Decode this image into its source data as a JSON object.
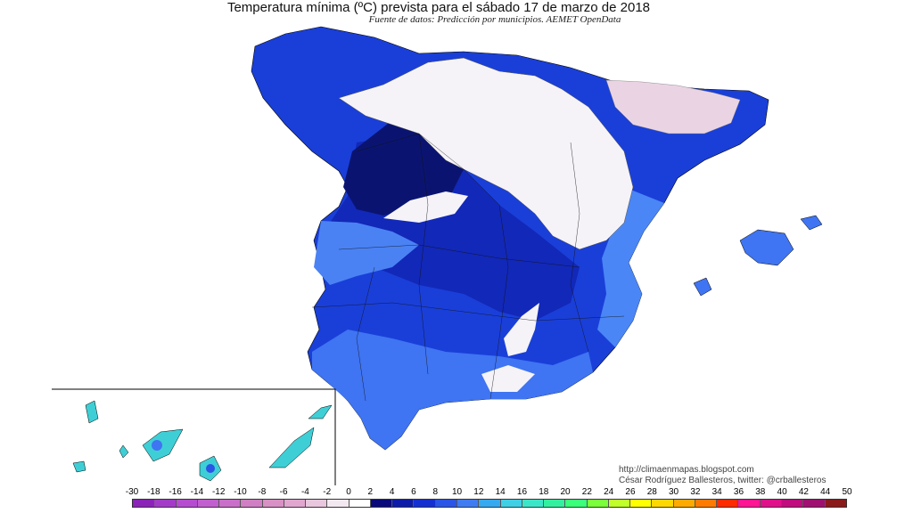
{
  "header": {
    "title": "Temperatura mínima (ºC) prevista para el sábado 17 de marzo de 2018",
    "source": "Fuente de datos: Predicción por municipios. AEMET OpenData"
  },
  "credits": {
    "url": "http://climaenmapas.blogspot.com",
    "author": "César Rodríguez Ballesteros, twitter: @crballesteros"
  },
  "legend": {
    "labels": [
      "-30",
      "-18",
      "-16",
      "-14",
      "-12",
      "-10",
      "-8",
      "-6",
      "-4",
      "-2",
      "0",
      "2",
      "4",
      "6",
      "8",
      "10",
      "12",
      "14",
      "16",
      "18",
      "20",
      "22",
      "24",
      "26",
      "28",
      "30",
      "32",
      "34",
      "36",
      "38",
      "40",
      "42",
      "44",
      "50"
    ],
    "colors": [
      "#8b23b8",
      "#a43bc8",
      "#b64dd1",
      "#c25fcf",
      "#c96fc9",
      "#d07fc4",
      "#d891c4",
      "#e0a6cf",
      "#e8c6dd",
      "#f2e8f0",
      "#ffffff",
      "#0a0a7a",
      "#0d1ca8",
      "#1530d0",
      "#2a55e6",
      "#3f7cf2",
      "#36a9f0",
      "#3fd0e6",
      "#3be6c8",
      "#33f0a0",
      "#3aff7a",
      "#7aff3a",
      "#c0ff2a",
      "#ffff00",
      "#ffd700",
      "#ffaa00",
      "#ff7b00",
      "#ff2a00",
      "#ff1493",
      "#e0108a",
      "#c00c7e",
      "#a01070",
      "#8b1a1a",
      "#6e0b0b"
    ],
    "unit_note": "ºC"
  },
  "map_colors": {
    "very_cold": "#0a1a6e",
    "cold": "#1636d8",
    "cool": "#3f6ff0",
    "mild": "#4a86f5",
    "near_zero": "#f6f4f8",
    "subzero": "#e6c6dc",
    "canarias": "#40d4d8"
  }
}
